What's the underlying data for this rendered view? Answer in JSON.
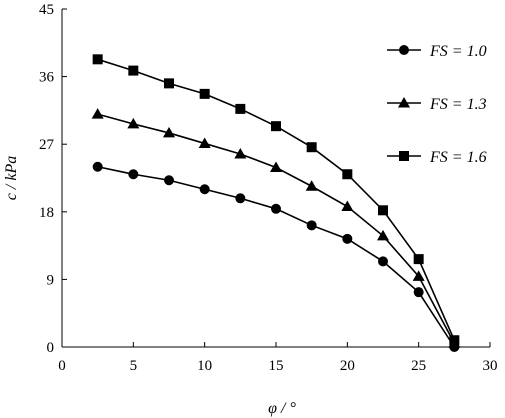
{
  "chart_data": {
    "type": "line",
    "xlabel": "φ / °",
    "ylabel": "c / kPa",
    "xlim": [
      0,
      30
    ],
    "ylim": [
      0,
      45
    ],
    "xticks": [
      0,
      5,
      10,
      15,
      20,
      25,
      30
    ],
    "yticks": [
      0,
      9,
      18,
      27,
      36,
      45
    ],
    "grid": false,
    "legend_position": "right",
    "series": [
      {
        "name": "FS = 1.0",
        "marker": "circle",
        "x": [
          2.5,
          5,
          7.5,
          10,
          12.5,
          15,
          17.5,
          20,
          22.5,
          25,
          27.5
        ],
        "y": [
          24.0,
          23.0,
          22.2,
          21.0,
          19.8,
          18.4,
          16.2,
          14.4,
          11.4,
          7.3,
          0.0
        ]
      },
      {
        "name": "FS = 1.3",
        "marker": "triangle",
        "x": [
          2.5,
          5,
          7.5,
          10,
          12.5,
          15,
          17.5,
          20,
          22.5,
          25,
          27.5
        ],
        "y": [
          31.0,
          29.7,
          28.5,
          27.1,
          25.7,
          23.9,
          21.4,
          18.7,
          14.8,
          9.4,
          0.5
        ]
      },
      {
        "name": "FS = 1.6",
        "marker": "square",
        "x": [
          2.5,
          5,
          7.5,
          10,
          12.5,
          15,
          17.5,
          20,
          22.5,
          25,
          27.5
        ],
        "y": [
          38.3,
          36.8,
          35.1,
          33.7,
          31.7,
          29.4,
          26.6,
          23.0,
          18.2,
          11.7,
          0.9
        ]
      }
    ]
  }
}
